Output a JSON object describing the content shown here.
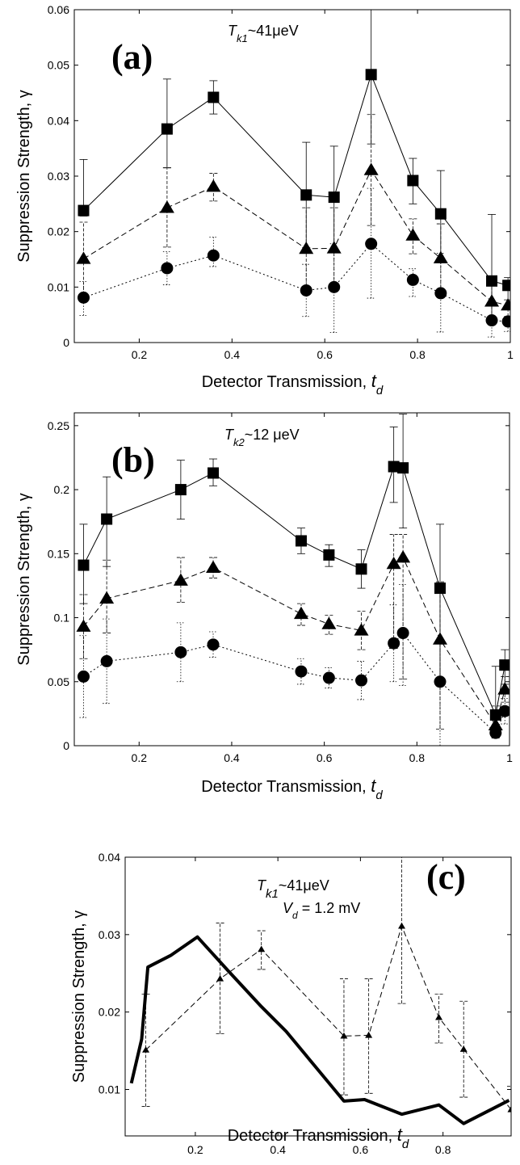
{
  "chart_data": [
    {
      "type": "line",
      "panel_label": "(a)",
      "annotation": {
        "prefix": "T",
        "sub": "k1",
        "rest": "~41μeV"
      },
      "ylabel": "Suppression Strength, γ",
      "xlabel": {
        "main": "Detector Transmission, ",
        "var": "t",
        "sub": "d"
      },
      "xlim": [
        0.06,
        1.0
      ],
      "ylim": [
        0,
        0.06
      ],
      "xticks": [
        0.2,
        0.4,
        0.6,
        0.8,
        1
      ],
      "xticklabels": [
        "0.2",
        "0.4",
        "0.6",
        "0.8",
        "1"
      ],
      "yticks": [
        0,
        0.01,
        0.02,
        0.03,
        0.04,
        0.05,
        0.06
      ],
      "yticklabels": [
        "0",
        "0.01",
        "0.02",
        "0.03",
        "0.04",
        "0.05",
        "0.06"
      ],
      "x": [
        0.08,
        0.26,
        0.36,
        0.56,
        0.62,
        0.7,
        0.79,
        0.85,
        0.96,
        0.995
      ],
      "series": [
        {
          "marker": "square",
          "line": "solid",
          "values": [
            0.0238,
            0.0385,
            0.0442,
            0.0266,
            0.0262,
            0.0483,
            0.0292,
            0.0232,
            0.0111,
            0.0103
          ],
          "err_lo": [
            0.001,
            0.007,
            0.003,
            0.0095,
            0.0098,
            0.0125,
            0.0042,
            0.008,
            0.0066,
            0.0036
          ],
          "err_hi": [
            0.0092,
            0.009,
            0.003,
            0.0095,
            0.0092,
            0.015,
            0.004,
            0.0078,
            0.012,
            0.0014
          ]
        },
        {
          "marker": "triangle",
          "line": "dashed",
          "values": [
            0.0151,
            0.0243,
            0.0281,
            0.0169,
            0.017,
            0.0311,
            0.0193,
            0.0152,
            0.0074,
            0.0067
          ],
          "err_lo": [
            0.0073,
            0.0071,
            0.0026,
            0.0076,
            0.0075,
            0.01,
            0.0033,
            0.0062,
            0.004,
            0.002
          ],
          "err_hi": [
            0.0066,
            0.0072,
            0.0024,
            0.0074,
            0.0073,
            0.01,
            0.003,
            0.0062,
            0.003,
            0.001
          ]
        },
        {
          "marker": "circle",
          "line": "dotted",
          "values": [
            0.0081,
            0.0134,
            0.0157,
            0.0094,
            0.01,
            0.0178,
            0.0113,
            0.0089,
            0.004,
            0.0038
          ],
          "err_lo": [
            0.0032,
            0.003,
            0.002,
            0.0047,
            0.0082,
            0.0098,
            0.003,
            0.007,
            0.003,
            0.0018
          ],
          "err_hi": [
            0.0029,
            0.003,
            0.0033,
            0.0047,
            0.0078,
            0.01,
            0.002,
            0.0072,
            0.0,
            0.0
          ]
        }
      ]
    },
    {
      "type": "line",
      "panel_label": "(b)",
      "annotation": {
        "prefix": "T",
        "sub": "k2",
        "rest": "~12 μeV"
      },
      "ylabel": "Suppression Strength, γ",
      "xlabel": {
        "main": "Detector Transmission, ",
        "var": "t",
        "sub": "d"
      },
      "xlim": [
        0.06,
        1.0
      ],
      "ylim": [
        0,
        0.26
      ],
      "xticks": [
        0.2,
        0.4,
        0.6,
        0.8,
        1
      ],
      "xticklabels": [
        "0.2",
        "0.4",
        "0.6",
        "0.8",
        "1"
      ],
      "yticks": [
        0,
        0.05,
        0.1,
        0.15,
        0.2,
        0.25
      ],
      "yticklabels": [
        "0",
        "0.05",
        "0.1",
        "0.15",
        "0.2",
        "0.25"
      ],
      "x": [
        0.08,
        0.13,
        0.29,
        0.36,
        0.55,
        0.61,
        0.68,
        0.75,
        0.77,
        0.85,
        0.97,
        0.99
      ],
      "series": [
        {
          "marker": "square",
          "line": "solid",
          "values": [
            0.141,
            0.177,
            0.2,
            0.213,
            0.16,
            0.149,
            0.138,
            0.218,
            0.217,
            0.123,
            0.024,
            0.063
          ],
          "err_lo": [
            0.03,
            0.037,
            0.023,
            0.01,
            0.01,
            0.009,
            0.015,
            0.028,
            0.047,
            0.073,
            0.014,
            0.015
          ],
          "err_hi": [
            0.032,
            0.033,
            0.023,
            0.011,
            0.01,
            0.008,
            0.015,
            0.031,
            0.042,
            0.05,
            0.038,
            0.012
          ]
        },
        {
          "marker": "triangle",
          "line": "dashed",
          "values": [
            0.093,
            0.115,
            0.129,
            0.139,
            0.103,
            0.095,
            0.09,
            0.142,
            0.147,
            0.083,
            0.016,
            0.044
          ],
          "err_lo": [
            0.025,
            0.027,
            0.017,
            0.008,
            0.009,
            0.008,
            0.015,
            0.066,
            0.095,
            0.07,
            0.01,
            0.01
          ],
          "err_hi": [
            0.025,
            0.03,
            0.018,
            0.008,
            0.008,
            0.007,
            0.015,
            0.023,
            0.018,
            0.045,
            0.015,
            0.01
          ]
        },
        {
          "marker": "circle",
          "line": "dotted",
          "values": [
            0.054,
            0.066,
            0.073,
            0.079,
            0.058,
            0.053,
            0.051,
            0.08,
            0.088,
            0.05,
            0.01,
            0.027
          ],
          "err_lo": [
            0.032,
            0.033,
            0.023,
            0.01,
            0.01,
            0.008,
            0.015,
            0.03,
            0.041,
            0.05,
            0.004,
            0.01
          ],
          "err_hi": [
            0.032,
            0.033,
            0.023,
            0.01,
            0.01,
            0.008,
            0.015,
            0.03,
            0.038,
            0.03,
            0.01,
            0.01
          ]
        }
      ]
    },
    {
      "type": "line",
      "panel_label": "(c)",
      "annotation": {
        "prefix": "T",
        "sub": "k1",
        "rest": "~41μeV"
      },
      "annotation2": {
        "prefix": "V",
        "sub": "d",
        "rest": " = 1.2 mV"
      },
      "ylabel": "Suppression Strength, γ",
      "xlabel": {
        "main": "Detector Transmission, ",
        "var": "t",
        "sub": "d"
      },
      "xlim": [
        0.03,
        0.965
      ],
      "ylim": [
        0.004,
        0.04
      ],
      "xticks": [
        0.2,
        0.4,
        0.6,
        0.8
      ],
      "xticklabels": [
        "0.2",
        "0.4",
        "0.6",
        "0.8"
      ],
      "yticks": [
        0.01,
        0.02,
        0.03,
        0.04
      ],
      "yticklabels": [
        "0.01",
        "0.02",
        "0.03",
        "0.04"
      ],
      "theory": {
        "x": [
          0.045,
          0.07,
          0.085,
          0.14,
          0.205,
          0.28,
          0.36,
          0.42,
          0.49,
          0.56,
          0.61,
          0.7,
          0.79,
          0.85,
          0.96
        ],
        "y": [
          0.0108,
          0.0165,
          0.0258,
          0.0273,
          0.0297,
          0.0253,
          0.0207,
          0.0175,
          0.013,
          0.0085,
          0.0087,
          0.0068,
          0.008,
          0.0056,
          0.0086
        ]
      },
      "series": [
        {
          "marker": "triangle-small",
          "line": "dashed",
          "x": [
            0.08,
            0.26,
            0.36,
            0.56,
            0.62,
            0.7,
            0.79,
            0.85,
            0.965
          ],
          "values": [
            0.0151,
            0.0243,
            0.0281,
            0.0169,
            0.017,
            0.0311,
            0.0193,
            0.0152,
            0.0074
          ],
          "err_lo": [
            0.0073,
            0.0071,
            0.0026,
            0.0076,
            0.0075,
            0.01,
            0.0033,
            0.0062,
            0.004
          ],
          "err_hi": [
            0.0072,
            0.0072,
            0.0024,
            0.0074,
            0.0073,
            0.012,
            0.003,
            0.0062,
            0.003
          ]
        }
      ]
    }
  ]
}
